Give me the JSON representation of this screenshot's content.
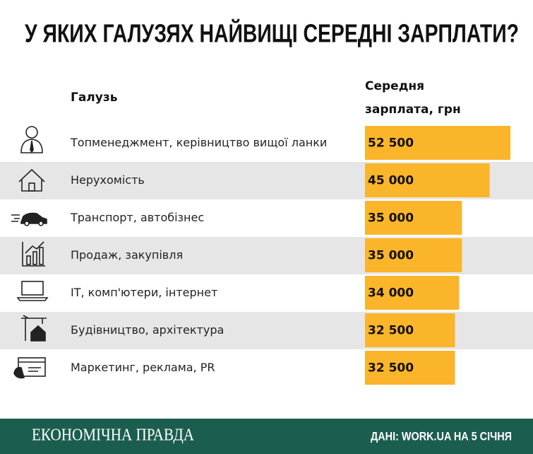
{
  "chart_data": {
    "type": "bar",
    "orientation": "horizontal",
    "title": "У ЯКИХ ГАЛУЗЯХ НАЙВИЩІ СЕРЕДНІ ЗАРПЛАТИ?",
    "category_header": "Галузь",
    "value_header": "Середня зарплата, грн",
    "categories": [
      "Топменеджмент, керівництво вищої ланки",
      "Нерухомість",
      "Транспорт, автобізнес",
      "Продаж, закупівля",
      "ІТ, комп'ютери, інтернет",
      "Будівництво, архітектура",
      "Маркетинг, реклама, PR"
    ],
    "values": [
      52500,
      45000,
      35000,
      35000,
      34000,
      32500,
      32500
    ],
    "value_labels": [
      "52 500",
      "45 000",
      "35 000",
      "35 000",
      "34 000",
      "32 500",
      "32 500"
    ],
    "color": "#fbb52a"
  },
  "footer": {
    "brand": "ЕКОНОМІЧНА ПРАВДА",
    "source": "ДАНІ: WORK.UA НА 5 СІЧНЯ"
  }
}
